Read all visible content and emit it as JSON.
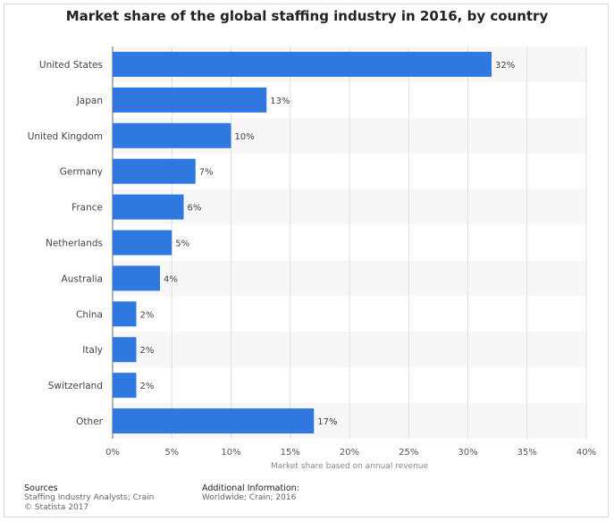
{
  "chart_data": {
    "type": "bar",
    "orientation": "horizontal",
    "title": "Market share of the global staffing industry in 2016, by country",
    "xlabel": "Market share based on annual revenue",
    "ylabel": "",
    "categories": [
      "United States",
      "Japan",
      "United Kingdom",
      "Germany",
      "France",
      "Netherlands",
      "Australia",
      "China",
      "Italy",
      "Switzerland",
      "Other"
    ],
    "values": [
      32,
      13,
      10,
      7,
      6,
      5,
      4,
      2,
      2,
      2,
      17
    ],
    "value_labels": [
      "32%",
      "13%",
      "10%",
      "7%",
      "6%",
      "5%",
      "4%",
      "2%",
      "2%",
      "2%",
      "17%"
    ],
    "xlim": [
      0,
      40
    ],
    "xticks": [
      "0%",
      "5%",
      "10%",
      "15%",
      "20%",
      "25%",
      "30%",
      "35%",
      "40%"
    ],
    "bar_color": "#2f78e0",
    "grid": true
  },
  "footer": {
    "sources_heading": "Sources",
    "sources_line1": "Staffing Industry Analysts; Crain",
    "sources_line2": "© Statista 2017",
    "info_heading": "Additional Information:",
    "info_line1": "Worldwide; Crain; 2016"
  }
}
